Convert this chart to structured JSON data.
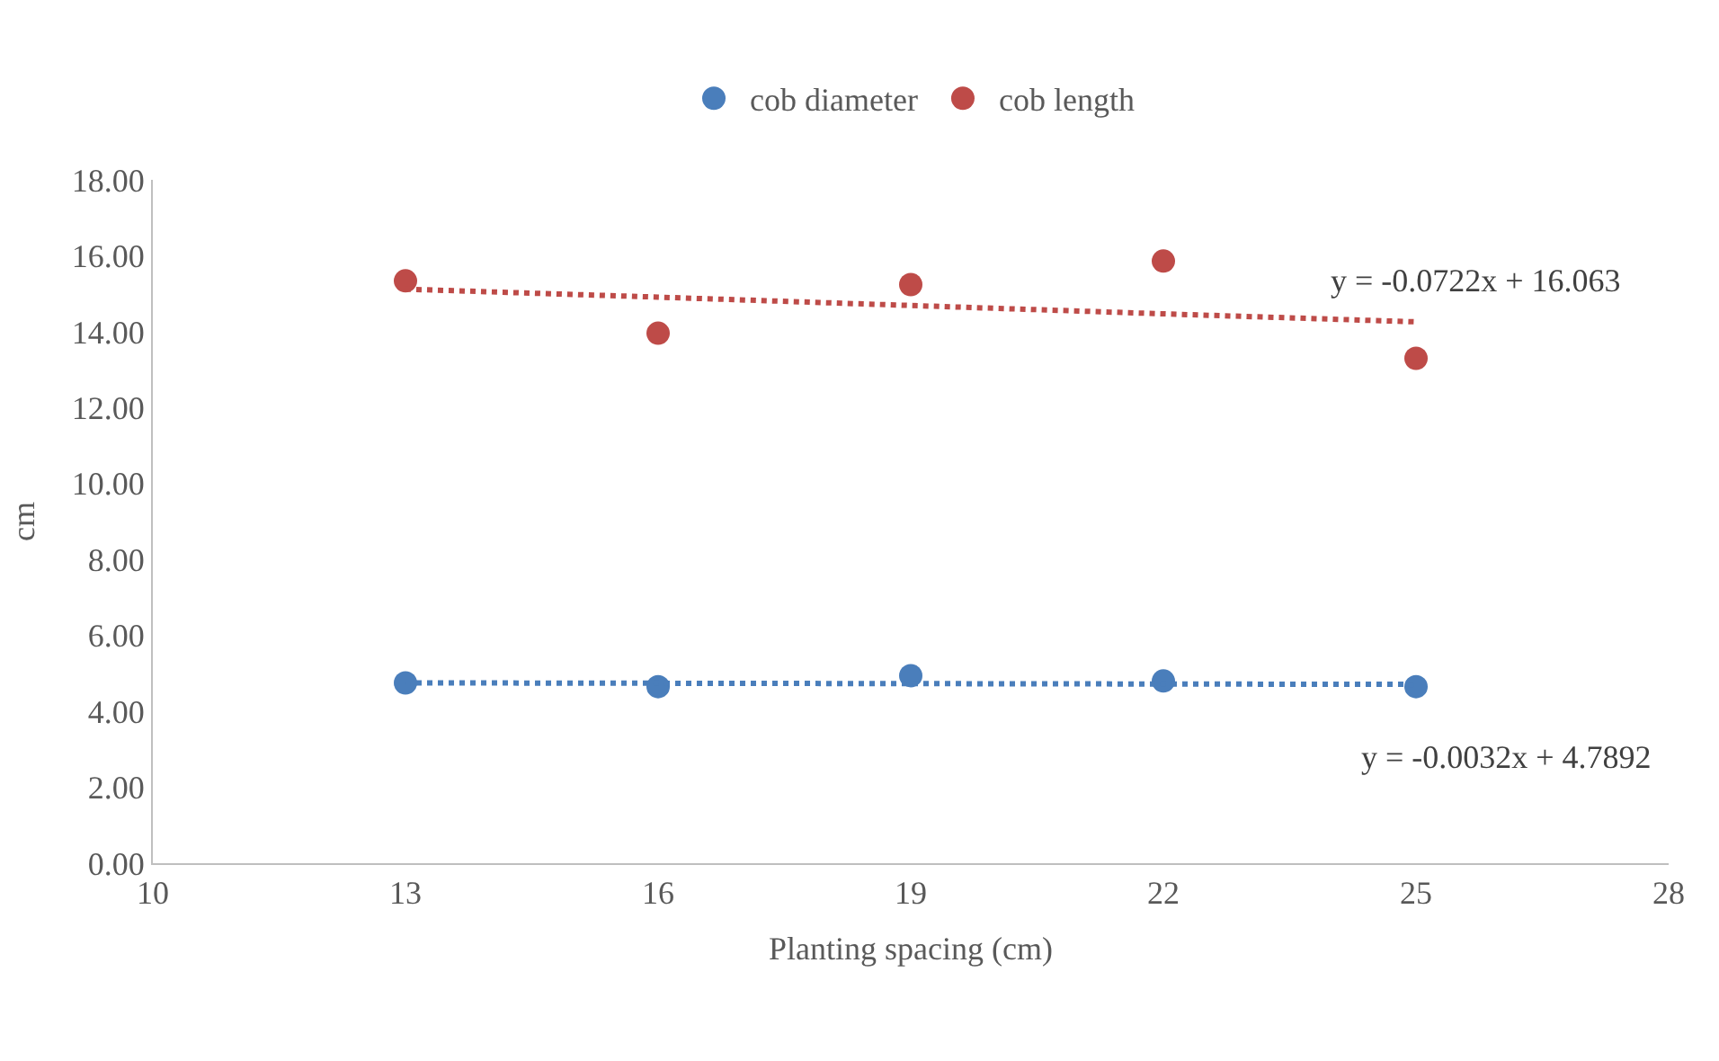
{
  "chart_data": {
    "type": "scatter",
    "xlabel": "Planting spacing (cm)",
    "ylabel": "cm",
    "x": [
      13,
      16,
      19,
      22,
      25
    ],
    "series": [
      {
        "name": "cob diameter",
        "color": "#4a7ebb",
        "values": [
          4.75,
          4.65,
          4.94,
          4.8,
          4.65
        ]
      },
      {
        "name": "cob length",
        "color": "#be4b48",
        "values": [
          15.34,
          13.96,
          15.24,
          15.86,
          13.3
        ]
      },
      {
        "type": "line",
        "color": "#4a7ebb",
        "values": [
          4.75,
          4.74,
          4.73,
          4.72,
          4.71
        ],
        "line_style": "dotted",
        "marker": "none"
      },
      {
        "type": "line",
        "color": "#be4b48",
        "values": [
          15.12,
          14.91,
          14.69,
          14.47,
          14.26
        ],
        "line_style": "dotted",
        "marker": "none"
      }
    ],
    "annotations": [
      "y = -0.0722x + 16.063",
      "y = -0.0032x + 4.7892"
    ],
    "xlim": [
      10,
      28
    ],
    "xticks": [
      10,
      13,
      16,
      19,
      22,
      25,
      28
    ],
    "ylim": [
      0,
      18
    ],
    "yticks": [
      {
        "value": 0,
        "label": "0.00"
      },
      {
        "value": 2,
        "label": "2.00"
      },
      {
        "value": 4,
        "label": "4.00"
      },
      {
        "value": 6,
        "label": "6.00"
      },
      {
        "value": 8,
        "label": "8.00"
      },
      {
        "value": 10,
        "label": "10.00"
      },
      {
        "value": 12,
        "label": "12.00"
      },
      {
        "value": 14,
        "label": "14.00"
      },
      {
        "value": 16,
        "label": "16.00"
      },
      {
        "value": 18,
        "label": "18.00"
      }
    ],
    "legend": "top",
    "marker": "circle"
  }
}
